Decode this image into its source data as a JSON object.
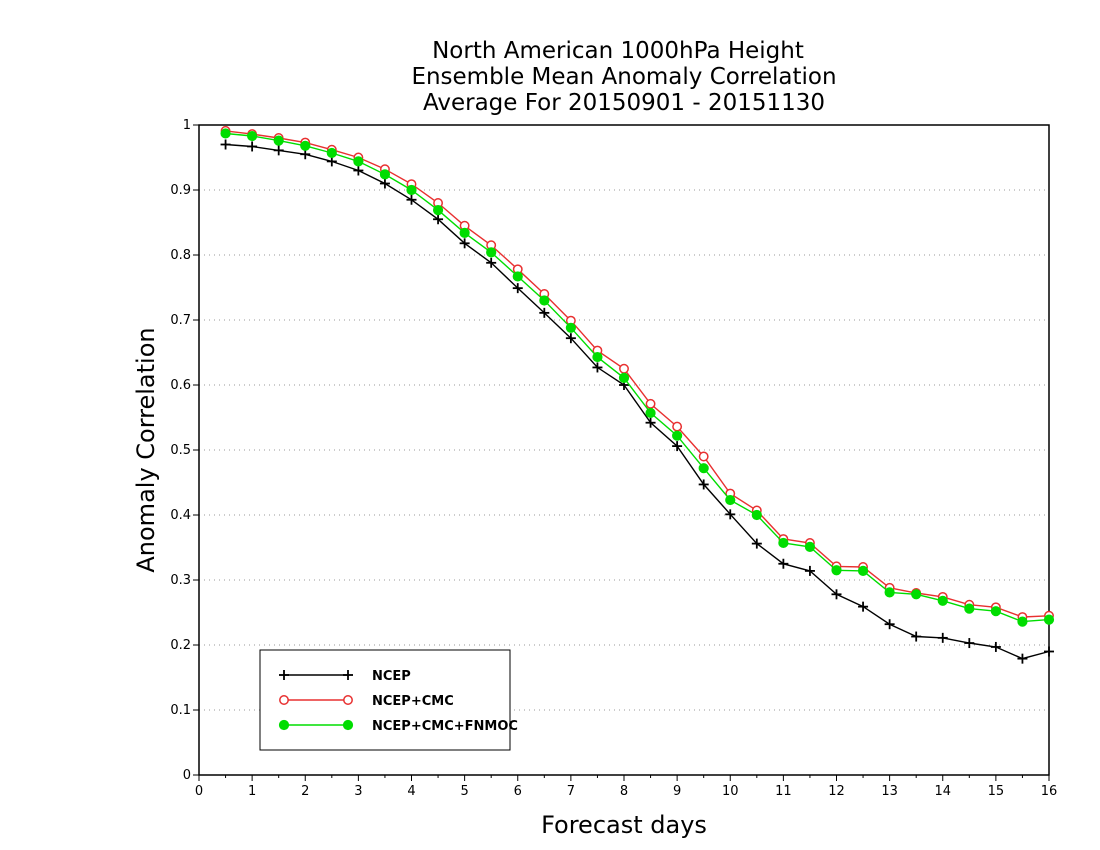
{
  "chart_data": {
    "type": "line",
    "title_lines": [
      "North American 1000hPa Height",
      "Ensemble Mean Anomaly Correlation",
      "Average For 20150901 - 20151130"
    ],
    "xlabel": "Forecast days",
    "ylabel": "Anomaly Correlation",
    "xlim": [
      0,
      16
    ],
    "ylim": [
      0,
      1
    ],
    "x_ticks": [
      "0",
      "1",
      "2",
      "3",
      "4",
      "5",
      "6",
      "7",
      "8",
      "9",
      "10",
      "11",
      "12",
      "13",
      "14",
      "15",
      "16"
    ],
    "y_ticks": [
      "0",
      "0.1",
      "0.2",
      "0.3",
      "0.4",
      "0.5",
      "0.6",
      "0.7",
      "0.8",
      "0.9",
      "1"
    ],
    "grid": "horizontal dotted",
    "legend_position": "bottom-left",
    "x": [
      0.5,
      1,
      1.5,
      2,
      2.5,
      3,
      3.5,
      4,
      4.5,
      5,
      5.5,
      6,
      6.5,
      7,
      7.5,
      8,
      8.5,
      9,
      9.5,
      10,
      10.5,
      11,
      11.5,
      12,
      12.5,
      13,
      13.5,
      14,
      14.5,
      15,
      15.5,
      16
    ],
    "series": [
      {
        "name": "NCEP",
        "color": "#000000",
        "marker": "plus",
        "values": [
          0.97,
          0.967,
          0.961,
          0.955,
          0.944,
          0.93,
          0.91,
          0.885,
          0.855,
          0.818,
          0.788,
          0.749,
          0.711,
          0.672,
          0.627,
          0.6,
          0.542,
          0.506,
          0.447,
          0.401,
          0.356,
          0.325,
          0.314,
          0.278,
          0.259,
          0.232,
          0.213,
          0.211,
          0.203,
          0.197,
          0.179,
          0.19
        ]
      },
      {
        "name": "NCEP+CMC",
        "color": "#e83030",
        "marker": "open-circle",
        "values": [
          0.991,
          0.986,
          0.98,
          0.973,
          0.962,
          0.95,
          0.932,
          0.909,
          0.88,
          0.845,
          0.815,
          0.778,
          0.74,
          0.699,
          0.653,
          0.625,
          0.571,
          0.536,
          0.49,
          0.433,
          0.407,
          0.363,
          0.357,
          0.321,
          0.32,
          0.288,
          0.28,
          0.274,
          0.262,
          0.258,
          0.243,
          0.245
        ]
      },
      {
        "name": "NCEP+CMC+FNMOC",
        "color": "#00dd00",
        "marker": "filled-circle",
        "values": [
          0.987,
          0.983,
          0.976,
          0.968,
          0.957,
          0.944,
          0.924,
          0.9,
          0.869,
          0.834,
          0.804,
          0.767,
          0.73,
          0.688,
          0.643,
          0.611,
          0.557,
          0.522,
          0.472,
          0.423,
          0.4,
          0.357,
          0.351,
          0.315,
          0.314,
          0.281,
          0.278,
          0.268,
          0.256,
          0.252,
          0.236,
          0.239
        ]
      }
    ]
  }
}
